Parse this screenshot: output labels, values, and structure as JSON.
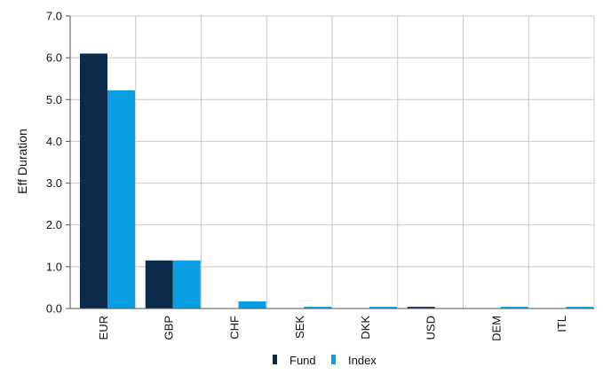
{
  "chart_data": {
    "type": "bar",
    "title": "",
    "xlabel": "",
    "ylabel": "Eff Duration",
    "ylim": [
      0,
      7
    ],
    "yticks": [
      "0.0",
      "1.0",
      "2.0",
      "3.0",
      "4.0",
      "5.0",
      "6.0",
      "7.0"
    ],
    "grid": true,
    "legend_position": "bottom",
    "categories": [
      "EUR",
      "GBP",
      "CHF",
      "SEK",
      "DKK",
      "USD",
      "DEM",
      "ITL"
    ],
    "series": [
      {
        "name": "Fund",
        "color": "#0b2a4a",
        "values": [
          6.1,
          1.15,
          0.0,
          0.0,
          0.0,
          0.04,
          0.0,
          0.0
        ]
      },
      {
        "name": "Index",
        "color": "#0a9fe3",
        "values": [
          5.22,
          1.15,
          0.17,
          0.04,
          0.04,
          0.0,
          0.04,
          0.04
        ]
      }
    ]
  }
}
